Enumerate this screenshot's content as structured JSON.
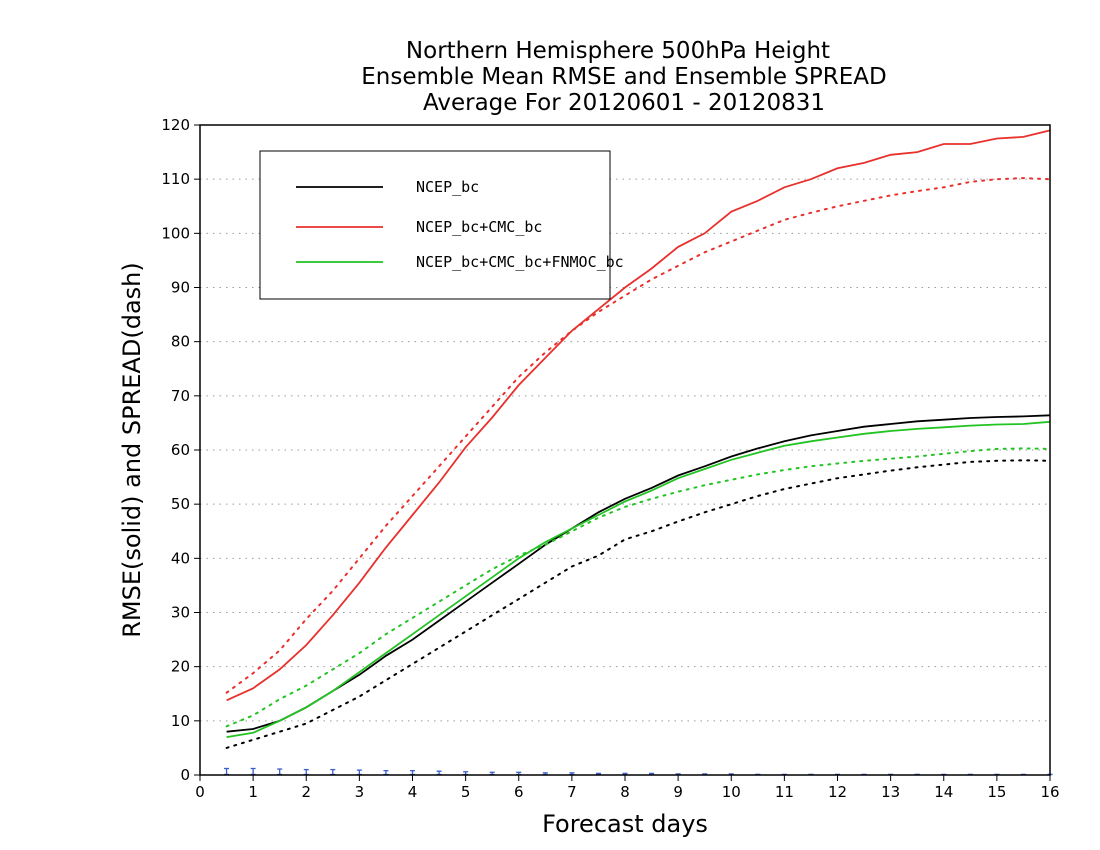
{
  "chart_data": {
    "type": "line",
    "title_lines": [
      "Northern Hemisphere 500hPa Height",
      "Ensemble Mean RMSE and Ensemble SPREAD",
      "Average For 20120601 - 20120831"
    ],
    "xlabel": "Forecast days",
    "ylabel": "RMSE(solid) and SPREAD(dash)",
    "xlim": [
      0,
      16
    ],
    "ylim": [
      0,
      120
    ],
    "x_ticks": [
      "0",
      "1",
      "2",
      "3",
      "4",
      "5",
      "6",
      "7",
      "8",
      "9",
      "10",
      "11",
      "12",
      "13",
      "14",
      "15",
      "16"
    ],
    "y_ticks": [
      "0",
      "10",
      "20",
      "30",
      "40",
      "50",
      "60",
      "70",
      "80",
      "90",
      "100",
      "110",
      "120"
    ],
    "grid": "horizontal dotted",
    "legend_position": "top-left",
    "colors": {
      "black": "#000000",
      "red": "#e8302c",
      "green": "#22c322",
      "blue": "#3a5fcd"
    },
    "x": [
      0.5,
      1,
      1.5,
      2,
      2.5,
      3,
      3.5,
      4,
      4.5,
      5,
      5.5,
      6,
      6.5,
      7,
      7.5,
      8,
      8.5,
      9,
      9.5,
      10,
      10.5,
      11,
      11.5,
      12,
      12.5,
      13,
      13.5,
      14,
      14.5,
      15,
      15.5,
      16
    ],
    "series": [
      {
        "name": "NCEP_bc",
        "color": "#000000",
        "rmse": [
          8,
          8.5,
          10,
          12.5,
          15.5,
          18.5,
          22,
          25,
          28.5,
          32,
          35.5,
          39,
          42.5,
          45.5,
          48.5,
          51,
          53,
          55.3,
          57,
          58.8,
          60.3,
          61.6,
          62.7,
          63.5,
          64.3,
          64.8,
          65.3,
          65.6,
          65.9,
          66.1,
          66.2,
          66.4
        ],
        "spread": [
          5,
          6.5,
          8,
          9.5,
          12,
          14.5,
          17.5,
          20.5,
          23.5,
          26.5,
          29.5,
          32.5,
          35.5,
          38.5,
          40.5,
          43.5,
          45,
          46.8,
          48.5,
          50,
          51.5,
          52.8,
          53.8,
          54.8,
          55.5,
          56.2,
          56.8,
          57.3,
          57.8,
          58,
          58.1,
          58
        ]
      },
      {
        "name": "NCEP_bc+CMC_bc",
        "color": "#e8302c",
        "rmse": [
          13.8,
          16,
          19.5,
          24,
          29.5,
          35.5,
          42,
          48,
          54,
          60.5,
          66,
          72,
          77,
          82,
          86,
          90,
          93.5,
          97.5,
          100,
          104,
          106,
          108.5,
          110,
          112,
          113,
          114.5,
          115,
          116.5,
          116.5,
          117.5,
          117.8,
          119
        ],
        "spread": [
          15.2,
          18.8,
          23,
          28.8,
          34,
          40,
          46,
          51.5,
          57,
          62.5,
          68,
          73.5,
          78,
          82,
          85.5,
          88.5,
          91.5,
          94,
          96.5,
          98.5,
          100.5,
          102.5,
          103.8,
          105,
          106,
          107,
          107.8,
          108.5,
          109.5,
          110,
          110.2,
          110
        ]
      },
      {
        "name": "NCEP_bc+CMC_bc+FNMOC_bc",
        "color": "#22c322",
        "rmse": [
          7,
          7.8,
          10,
          12.5,
          15.5,
          19,
          22.5,
          26,
          29.5,
          33,
          36.5,
          40,
          43,
          45.5,
          48,
          50.5,
          52.5,
          54.8,
          56.5,
          58.2,
          59.5,
          60.8,
          61.6,
          62.3,
          63,
          63.5,
          63.9,
          64.2,
          64.5,
          64.7,
          64.8,
          65.2
        ],
        "spread": [
          9,
          11,
          14,
          16.5,
          19.5,
          22.5,
          26,
          29,
          32,
          35,
          38,
          40.5,
          42.5,
          45,
          47.5,
          49.5,
          51,
          52.3,
          53.5,
          54.5,
          55.5,
          56.3,
          57,
          57.5,
          58,
          58.4,
          58.8,
          59.3,
          59.8,
          60.2,
          60.3,
          60.2
        ]
      }
    ],
    "difference_markers": {
      "color": "#3a5fcd",
      "values": [
        1.2,
        1.2,
        1.1,
        1,
        1,
        0.9,
        0.8,
        0.8,
        0.7,
        0.6,
        0.5,
        0.5,
        0.4,
        0.4,
        0.3,
        0.3,
        0.3,
        0.2,
        0.2,
        0.2,
        0.1,
        0.1,
        0.1,
        0.1,
        0.1,
        0.1,
        0.1,
        0.1,
        0.1,
        0.1,
        0.1,
        0.1
      ]
    }
  }
}
